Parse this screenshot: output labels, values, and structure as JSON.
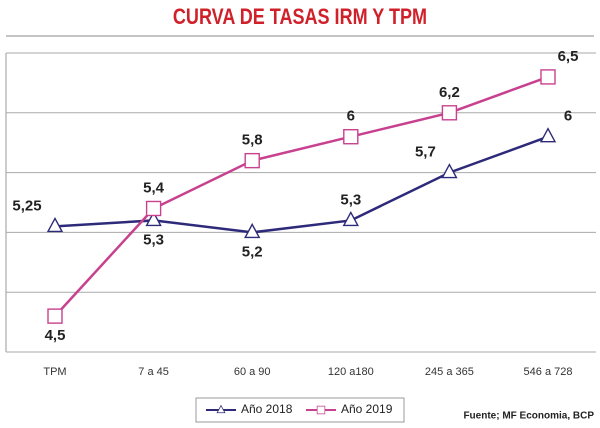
{
  "chart_data": {
    "type": "line",
    "title": "CURVA DE TASAS IRM Y TPM",
    "source": "Fuente; MF Economia, BCP",
    "categories": [
      "TPM",
      "7 a 45",
      "60 a 90",
      "120 a180",
      "245 a 365",
      "546 a 728"
    ],
    "series": [
      {
        "name": "Año 2018",
        "color": "#2e2a7a",
        "marker": "triangle",
        "values": [
          5.25,
          5.3,
          5.2,
          5.3,
          5.7,
          6
        ],
        "value_labels": [
          "5,25",
          "5,3",
          "5,2",
          "5,3",
          "5,7",
          "6"
        ]
      },
      {
        "name": "Año 2019",
        "color": "#c8418f",
        "marker": "square",
        "values": [
          4.5,
          5.4,
          5.8,
          6,
          6.2,
          6.5
        ],
        "value_labels": [
          "4,5",
          "5,4",
          "5,8",
          "6",
          "6,2",
          "6,5"
        ]
      }
    ],
    "ylim": [
      4.2,
      6.7
    ],
    "yticks": [
      4.2,
      4.7,
      5.2,
      5.7,
      6.2,
      6.7
    ],
    "grid": true,
    "legend": "bottom"
  }
}
